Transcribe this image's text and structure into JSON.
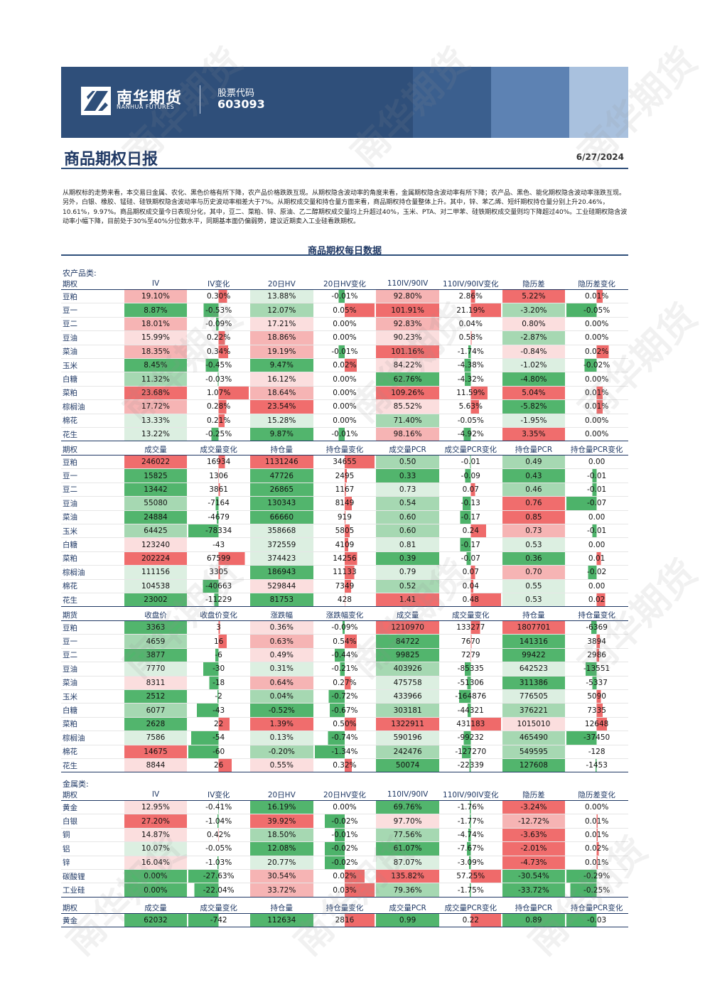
{
  "header": {
    "company_cn": "南华期货",
    "company_en": "NANHUA FUTURES",
    "stock_label": "股票代码",
    "stock_code": "603093"
  },
  "report": {
    "title": "商品期权日报",
    "date": "6/27/2024",
    "summary": "从期权标的走势来看，本交易日金属、农化、黑色价格有所下降，农产品价格跌跌互现。从期权隐含波动率的角度来看，金属期权隐含波动率有所下降；农产品、黑色、能化期权隐含波动率涨跌互现。另外，白银、橡胶、锰硅、硅铁期权隐含波动率与历史波动率相差大于7%。从期权成交量和持仓量方面来看，商品期权持仓量整体上升。其中，锌、苯乙烯、短纤期权持仓量分别上升20.46%，10.61%，9.97%。商品期权成交量今日表现分化，其中，豆二、菜粕、锌、原油、乙二醇期权成交量均上升超过40%，玉米、PTA、对二甲苯、硅铁期权成交量则均下降超过40%。工业硅期权隐含波动率小幅下降，目前处于30%至40%分位数水平，同期基本面仍偏弱势，建议近期卖入工业硅看跌期权。",
    "section_title": "商品期权每日数据",
    "watermark": "南华期货"
  },
  "agri": {
    "group_label": "农产品类:",
    "iv_table": {
      "headers": [
        "期权",
        "IV",
        "IV变化",
        "20日HV",
        "20日HV变化",
        "110IV/90IV",
        "110IV/90IV变化",
        "隐历差",
        "隐历差变化"
      ],
      "rows": [
        [
          "豆粕",
          "19.10%",
          "0.30%",
          "13.88%",
          "-0.01%",
          "92.80%",
          "2.86%",
          "5.22%",
          "0.01%"
        ],
        [
          "豆一",
          "8.87%",
          "-0.53%",
          "12.07%",
          "0.05%",
          "101.91%",
          "21.19%",
          "-3.20%",
          "-0.05%"
        ],
        [
          "豆二",
          "18.01%",
          "-0.09%",
          "17.21%",
          "0.00%",
          "92.83%",
          "0.04%",
          "0.80%",
          "0.00%"
        ],
        [
          "豆油",
          "15.99%",
          "0.22%",
          "18.86%",
          "0.00%",
          "90.23%",
          "0.58%",
          "-2.87%",
          "0.00%"
        ],
        [
          "菜油",
          "18.35%",
          "0.34%",
          "19.19%",
          "-0.01%",
          "101.16%",
          "-1.74%",
          "-0.84%",
          "0.02%"
        ],
        [
          "玉米",
          "8.45%",
          "-0.45%",
          "9.47%",
          "0.02%",
          "84.22%",
          "-4.38%",
          "-1.02%",
          "-0.02%"
        ],
        [
          "白糖",
          "11.32%",
          "-0.03%",
          "16.12%",
          "0.00%",
          "62.76%",
          "-4.32%",
          "-4.80%",
          "0.00%"
        ],
        [
          "菜粕",
          "23.68%",
          "1.07%",
          "18.64%",
          "0.00%",
          "109.26%",
          "11.59%",
          "5.04%",
          "0.01%"
        ],
        [
          "棕榈油",
          "17.72%",
          "0.28%",
          "23.54%",
          "0.00%",
          "85.52%",
          "5.63%",
          "-5.82%",
          "0.01%"
        ],
        [
          "棉花",
          "13.33%",
          "0.21%",
          "15.28%",
          "0.00%",
          "71.40%",
          "-0.05%",
          "-1.95%",
          "0.00%"
        ],
        [
          "花生",
          "13.22%",
          "-0.25%",
          "9.87%",
          "-0.01%",
          "98.16%",
          "-4.92%",
          "3.35%",
          "0.00%"
        ]
      ]
    },
    "volume_table": {
      "headers": [
        "期权",
        "成交量",
        "成交量变化",
        "持仓量",
        "持仓量变化",
        "成交量PCR",
        "成交量PCR变化",
        "持仓量PCR",
        "持仓量PCR变化"
      ],
      "rows": [
        [
          "豆粕",
          "246022",
          "16934",
          "1131246",
          "34655",
          "0.50",
          "-0.01",
          "0.49",
          "0.00"
        ],
        [
          "豆一",
          "15825",
          "1306",
          "47726",
          "2495",
          "0.33",
          "-0.09",
          "0.43",
          "-0.01"
        ],
        [
          "豆二",
          "13442",
          "3861",
          "26865",
          "1167",
          "0.73",
          "0.07",
          "0.46",
          "-0.01"
        ],
        [
          "豆油",
          "55080",
          "-7164",
          "130343",
          "8149",
          "0.54",
          "-0.13",
          "0.76",
          "-0.07"
        ],
        [
          "菜油",
          "24884",
          "-4679",
          "66660",
          "919",
          "0.60",
          "-0.17",
          "0.85",
          "0.00"
        ],
        [
          "玉米",
          "64425",
          "-78334",
          "358668",
          "5805",
          "0.60",
          "0.24",
          "0.73",
          "-0.01"
        ],
        [
          "白糖",
          "123240",
          "-43",
          "372559",
          "4109",
          "0.81",
          "-0.17",
          "0.53",
          "0.00"
        ],
        [
          "菜粕",
          "202224",
          "67599",
          "374423",
          "14256",
          "0.39",
          "-0.07",
          "0.36",
          "0.01"
        ],
        [
          "棕榈油",
          "111156",
          "3305",
          "186943",
          "11133",
          "0.79",
          "0.07",
          "0.70",
          "-0.02"
        ],
        [
          "棉花",
          "104538",
          "-40663",
          "529844",
          "7349",
          "0.52",
          "0.04",
          "0.55",
          "0.00"
        ],
        [
          "花生",
          "23002",
          "-11229",
          "81753",
          "428",
          "1.41",
          "0.48",
          "0.53",
          "0.02"
        ]
      ]
    },
    "futures_table": {
      "headers": [
        "期货",
        "收盘价",
        "收盘价变化",
        "涨跌幅",
        "涨跌幅变化",
        "成交量",
        "成交量变化",
        "持仓量",
        "持仓量变化"
      ],
      "rows": [
        [
          "豆粕",
          "3363",
          "3",
          "0.36%",
          "-0.09%",
          "1210970",
          "133277",
          "1807701",
          "-6369"
        ],
        [
          "豆一",
          "4659",
          "16",
          "0.63%",
          "0.54%",
          "84722",
          "7670",
          "141316",
          "3894"
        ],
        [
          "豆二",
          "3877",
          "-6",
          "0.49%",
          "-0.44%",
          "99825",
          "7279",
          "99422",
          "2986"
        ],
        [
          "豆油",
          "7770",
          "-30",
          "0.31%",
          "-0.21%",
          "403926",
          "-85335",
          "642523",
          "-13551"
        ],
        [
          "菜油",
          "8311",
          "-18",
          "0.64%",
          "0.27%",
          "475758",
          "-51306",
          "311386",
          "-5337"
        ],
        [
          "玉米",
          "2512",
          "-2",
          "0.04%",
          "-0.72%",
          "433966",
          "-164876",
          "776505",
          "5090"
        ],
        [
          "白糖",
          "6077",
          "-43",
          "-0.52%",
          "-0.67%",
          "303181",
          "-44321",
          "376221",
          "7335"
        ],
        [
          "菜粕",
          "2628",
          "22",
          "1.39%",
          "0.50%",
          "1322911",
          "431183",
          "1015010",
          "12648"
        ],
        [
          "棕榈油",
          "7586",
          "-54",
          "0.13%",
          "-0.74%",
          "590196",
          "-99232",
          "465490",
          "-37450"
        ],
        [
          "棉花",
          "14675",
          "-60",
          "-0.20%",
          "-1.34%",
          "242476",
          "-127270",
          "549595",
          "-128"
        ],
        [
          "花生",
          "8844",
          "26",
          "0.55%",
          "0.32%",
          "50074",
          "-22339",
          "127608",
          "-1453"
        ]
      ]
    }
  },
  "metal": {
    "group_label": "金属类:",
    "iv_table": {
      "headers": [
        "期权",
        "IV",
        "IV变化",
        "20日HV",
        "20日HV变化",
        "110IV/90IV",
        "110IV/90IV变化",
        "隐历差",
        "隐历差变化"
      ],
      "rows": [
        [
          "黄金",
          "12.95%",
          "-0.41%",
          "16.19%",
          "0.00%",
          "69.76%",
          "-1.76%",
          "-3.24%",
          "0.00%"
        ],
        [
          "白银",
          "27.20%",
          "-1.04%",
          "39.92%",
          "-0.02%",
          "97.70%",
          "-1.77%",
          "-12.72%",
          "0.01%"
        ],
        [
          "铜",
          "14.87%",
          "0.42%",
          "18.50%",
          "-0.01%",
          "77.56%",
          "-4.74%",
          "-3.63%",
          "0.01%"
        ],
        [
          "铝",
          "10.07%",
          "-0.05%",
          "12.08%",
          "-0.02%",
          "61.07%",
          "-7.67%",
          "-2.01%",
          "0.02%"
        ],
        [
          "锌",
          "16.04%",
          "-1.03%",
          "20.77%",
          "-0.02%",
          "87.07%",
          "-3.09%",
          "-4.73%",
          "0.01%"
        ],
        [
          "碳酸锂",
          "0.00%",
          "-27.63%",
          "30.54%",
          "0.02%",
          "135.82%",
          "57.25%",
          "-30.54%",
          "-0.29%"
        ],
        [
          "工业硅",
          "0.00%",
          "-22.04%",
          "33.72%",
          "0.03%",
          "79.36%",
          "-1.75%",
          "-33.72%",
          "-0.25%"
        ]
      ]
    },
    "volume_table": {
      "headers": [
        "期权",
        "成交量",
        "成交量变化",
        "持仓量",
        "持仓量变化",
        "成交量PCR",
        "成交量PCR变化",
        "持仓量PCR",
        "持仓量PCR变化"
      ],
      "rows": [
        [
          "黄金",
          "62032",
          "-742",
          "112634",
          "2816",
          "0.99",
          "0.22",
          "0.89",
          "-0.03"
        ]
      ]
    }
  },
  "colors": {
    "banner": "#2f4f7a",
    "title": "#1f3864",
    "positive": "#f06d6d",
    "negative": "#52b56d"
  }
}
